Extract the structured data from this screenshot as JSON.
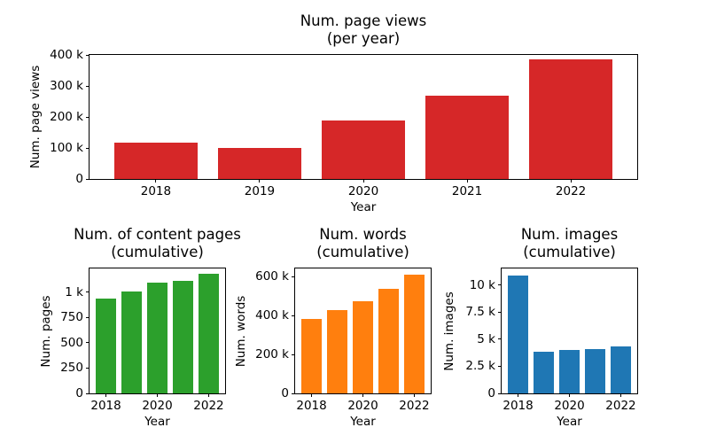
{
  "figure": {
    "background": "#ffffff",
    "spine_color": "#000000",
    "text_color": "#000000"
  },
  "chart_data": [
    {
      "type": "bar",
      "title_line1": "Num. page views",
      "title_line2": "(per year)",
      "xlabel": "Year",
      "ylabel": "Num. page views",
      "categories": [
        "2018",
        "2019",
        "2020",
        "2021",
        "2022"
      ],
      "values": [
        117500,
        99000,
        188000,
        270000,
        386000
      ],
      "bar_color": "#d62728",
      "ylim": [
        0,
        400000
      ],
      "yticks": {
        "values": [
          0,
          100000,
          200000,
          300000,
          400000
        ],
        "labels": [
          "0",
          "100 k",
          "200 k",
          "300 k",
          "400 k"
        ]
      },
      "xtick_indices": [
        0,
        1,
        2,
        3,
        4
      ],
      "grid": false,
      "legend": null
    },
    {
      "type": "bar",
      "title_line1": "Num. of content pages",
      "title_line2": "(cumulative)",
      "xlabel": "Year",
      "ylabel": "Num. pages",
      "categories": [
        "2018",
        "2019",
        "2020",
        "2021",
        "2022"
      ],
      "values": [
        935,
        1010,
        1095,
        1110,
        1180
      ],
      "bar_color": "#2ca02c",
      "ylim": [
        0,
        1235
      ],
      "yticks": {
        "values": [
          0,
          250,
          500,
          750,
          1000
        ],
        "labels": [
          "0",
          "250",
          "500",
          "750",
          "1 k"
        ]
      },
      "xtick_indices": [
        0,
        2,
        4
      ],
      "grid": false,
      "legend": null
    },
    {
      "type": "bar",
      "title_line1": "Num. words",
      "title_line2": "(cumulative)",
      "xlabel": "Year",
      "ylabel": "Num. words",
      "categories": [
        "2018",
        "2019",
        "2020",
        "2021",
        "2022"
      ],
      "values": [
        381000,
        426000,
        473000,
        538000,
        609000
      ],
      "bar_color": "#ff7f0e",
      "ylim": [
        0,
        641000
      ],
      "yticks": {
        "values": [
          0,
          200000,
          400000,
          600000
        ],
        "labels": [
          "0",
          "200 k",
          "400 k",
          "600 k"
        ]
      },
      "xtick_indices": [
        0,
        2,
        4
      ],
      "grid": false,
      "legend": null
    },
    {
      "type": "bar",
      "title_line1": "Num. images",
      "title_line2": "(cumulative)",
      "xlabel": "Year",
      "ylabel": "Num. images",
      "categories": [
        "2018",
        "2019",
        "2020",
        "2021",
        "2022"
      ],
      "values": [
        10890,
        3840,
        3970,
        4080,
        4320
      ],
      "bar_color": "#1f77b4",
      "ylim": [
        0,
        11530
      ],
      "yticks": {
        "values": [
          0,
          2500,
          5000,
          7500,
          10000
        ],
        "labels": [
          "0",
          "2.5 k",
          "5 k",
          "7.5 k",
          "10 k"
        ]
      },
      "xtick_indices": [
        0,
        2,
        4
      ],
      "grid": false,
      "legend": null
    }
  ]
}
